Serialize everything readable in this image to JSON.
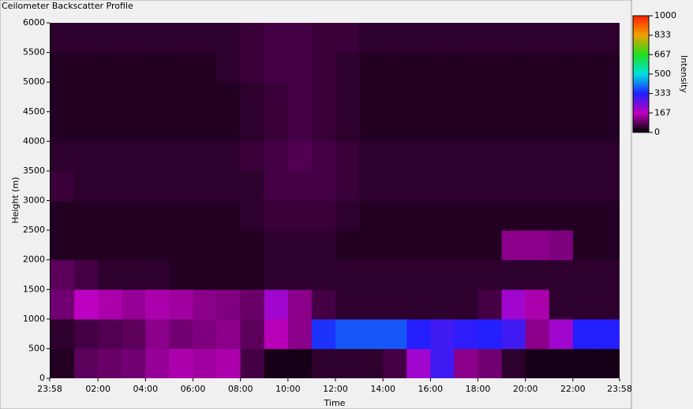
{
  "chart_data": {
    "type": "heatmap",
    "title": "Ceilometer Backscatter Profile",
    "x_label": "Time",
    "y_label": "Height (m)",
    "colorbar_label": "Intensity",
    "xlim": [
      -0.0333,
      23.9667
    ],
    "xticks": [
      {
        "value": -0.0333,
        "label": "23:58"
      },
      {
        "value": 2,
        "label": "02:00"
      },
      {
        "value": 4,
        "label": "04:00"
      },
      {
        "value": 6,
        "label": "06:00"
      },
      {
        "value": 8,
        "label": "08:00"
      },
      {
        "value": 10,
        "label": "10:00"
      },
      {
        "value": 12,
        "label": "12:00"
      },
      {
        "value": 14,
        "label": "14:00"
      },
      {
        "value": 16,
        "label": "16:00"
      },
      {
        "value": 18,
        "label": "18:00"
      },
      {
        "value": 20,
        "label": "20:00"
      },
      {
        "value": 22,
        "label": "22:00"
      },
      {
        "value": 23.9667,
        "label": "23:58"
      }
    ],
    "ylim": [
      0,
      6000
    ],
    "yticks": [
      0,
      500,
      1000,
      1500,
      2000,
      2500,
      3000,
      3500,
      4000,
      4500,
      5000,
      5500,
      6000
    ],
    "zlim": [
      0,
      1000
    ],
    "zticks": [
      0,
      167,
      333,
      500,
      667,
      833,
      1000
    ],
    "colormap": [
      "#000000",
      "#c000c0",
      "#2020ff",
      "#00e0e0",
      "#20e020",
      "#f0a000",
      "#ff2000"
    ],
    "x": [
      0.5,
      1.5,
      2.5,
      3.5,
      4.5,
      5.5,
      6.5,
      7.5,
      8.5,
      9.5,
      10.5,
      11.5,
      12.5,
      13.5,
      14.5,
      15.5,
      16.5,
      17.5,
      18.5,
      19.5,
      20.5,
      21.5,
      22.5,
      23.5
    ],
    "y": [
      250,
      750,
      1250,
      1750,
      2250,
      2750,
      3250,
      3750,
      4250,
      4750,
      5250,
      5750
    ],
    "z": [
      [
        30,
        80,
        90,
        100,
        130,
        150,
        140,
        150,
        60,
        20,
        20,
        40,
        40,
        40,
        60,
        200,
        300,
        120,
        100,
        40,
        20,
        20,
        20,
        20
      ],
      [
        40,
        60,
        70,
        80,
        120,
        100,
        110,
        120,
        80,
        160,
        120,
        350,
        380,
        380,
        380,
        330,
        300,
        320,
        330,
        300,
        120,
        200,
        330,
        330
      ],
      [
        100,
        170,
        150,
        130,
        150,
        140,
        120,
        110,
        90,
        200,
        120,
        60,
        40,
        40,
        40,
        40,
        40,
        40,
        60,
        200,
        150,
        40,
        40,
        40
      ],
      [
        80,
        60,
        40,
        40,
        40,
        30,
        30,
        30,
        30,
        40,
        40,
        40,
        40,
        40,
        40,
        40,
        40,
        40,
        40,
        40,
        40,
        40,
        40,
        40
      ],
      [
        30,
        30,
        30,
        30,
        30,
        30,
        30,
        30,
        30,
        40,
        40,
        40,
        30,
        30,
        30,
        30,
        30,
        30,
        30,
        120,
        120,
        110,
        30,
        30
      ],
      [
        30,
        30,
        30,
        30,
        30,
        30,
        30,
        30,
        40,
        50,
        50,
        50,
        40,
        30,
        30,
        30,
        30,
        30,
        30,
        30,
        30,
        30,
        30,
        30
      ],
      [
        50,
        40,
        40,
        40,
        40,
        40,
        40,
        40,
        40,
        60,
        60,
        60,
        50,
        40,
        40,
        40,
        40,
        40,
        40,
        40,
        40,
        40,
        40,
        40
      ],
      [
        40,
        40,
        40,
        40,
        40,
        40,
        40,
        40,
        50,
        60,
        70,
        60,
        50,
        40,
        40,
        40,
        40,
        40,
        40,
        40,
        40,
        40,
        40,
        40
      ],
      [
        30,
        30,
        30,
        30,
        30,
        30,
        30,
        30,
        40,
        50,
        60,
        50,
        40,
        30,
        30,
        30,
        30,
        30,
        30,
        30,
        30,
        30,
        30,
        30
      ],
      [
        30,
        30,
        30,
        30,
        30,
        30,
        30,
        30,
        40,
        50,
        60,
        50,
        40,
        30,
        30,
        30,
        30,
        30,
        30,
        30,
        30,
        30,
        30,
        30
      ],
      [
        30,
        30,
        30,
        30,
        30,
        30,
        30,
        40,
        50,
        60,
        60,
        50,
        40,
        30,
        30,
        30,
        30,
        30,
        30,
        30,
        30,
        30,
        30,
        30
      ],
      [
        40,
        40,
        40,
        40,
        40,
        40,
        40,
        40,
        50,
        60,
        60,
        50,
        50,
        40,
        40,
        40,
        40,
        40,
        40,
        40,
        40,
        40,
        40,
        40
      ]
    ]
  }
}
